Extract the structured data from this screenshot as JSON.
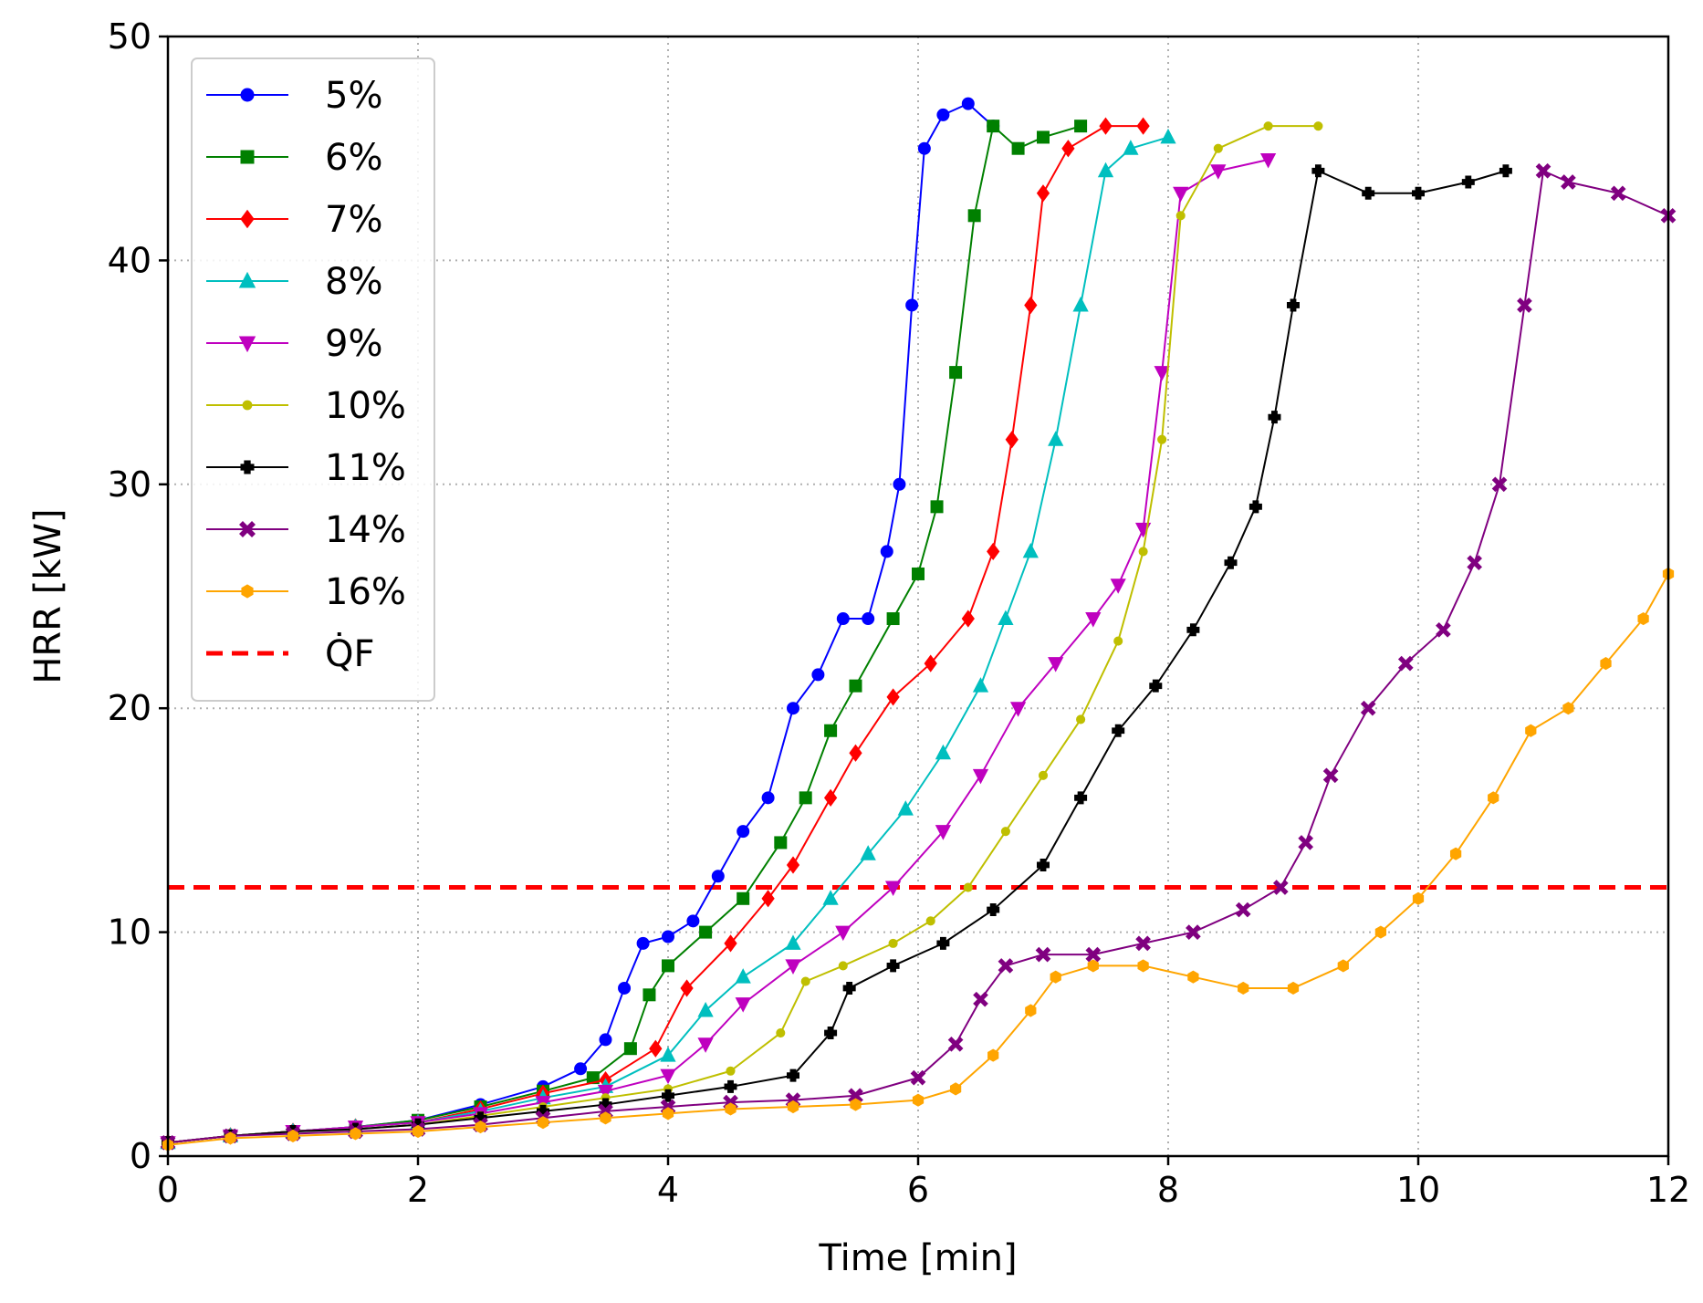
{
  "chart_data": {
    "type": "line",
    "title": "",
    "xlabel": "Time [min]",
    "ylabel": "HRR [kW]",
    "xlim": [
      0,
      12
    ],
    "ylim": [
      0,
      50
    ],
    "xticks": [
      "0",
      "2",
      "4",
      "6",
      "8",
      "10",
      "12"
    ],
    "yticks": [
      "0",
      "10",
      "20",
      "30",
      "40",
      "50"
    ],
    "grid": true,
    "legend_position": "top-left",
    "reference_line": {
      "name": "Q̇F",
      "value": 12,
      "color": "#ff0000",
      "style": "dashed"
    },
    "series": [
      {
        "name": "5%",
        "color": "#0000ff",
        "marker": "circle",
        "points": [
          [
            0,
            0.6
          ],
          [
            0.5,
            0.9
          ],
          [
            1,
            1.1
          ],
          [
            1.5,
            1.3
          ],
          [
            2,
            1.6
          ],
          [
            2.5,
            2.3
          ],
          [
            3,
            3.1
          ],
          [
            3.3,
            3.9
          ],
          [
            3.5,
            5.2
          ],
          [
            3.65,
            7.5
          ],
          [
            3.8,
            9.5
          ],
          [
            4,
            9.8
          ],
          [
            4.2,
            10.5
          ],
          [
            4.4,
            12.5
          ],
          [
            4.6,
            14.5
          ],
          [
            4.8,
            16
          ],
          [
            5,
            20
          ],
          [
            5.2,
            21.5
          ],
          [
            5.4,
            24
          ],
          [
            5.6,
            24
          ],
          [
            5.75,
            27
          ],
          [
            5.85,
            30
          ],
          [
            5.95,
            38
          ],
          [
            6.05,
            45
          ],
          [
            6.2,
            46.5
          ],
          [
            6.4,
            47
          ],
          [
            6.6,
            46
          ]
        ]
      },
      {
        "name": "6%",
        "color": "#008000",
        "marker": "square",
        "points": [
          [
            0,
            0.6
          ],
          [
            0.5,
            0.9
          ],
          [
            1,
            1.1
          ],
          [
            1.5,
            1.3
          ],
          [
            2,
            1.6
          ],
          [
            2.5,
            2.2
          ],
          [
            3,
            2.9
          ],
          [
            3.4,
            3.5
          ],
          [
            3.7,
            4.8
          ],
          [
            3.85,
            7.2
          ],
          [
            4,
            8.5
          ],
          [
            4.3,
            10
          ],
          [
            4.6,
            11.5
          ],
          [
            4.9,
            14
          ],
          [
            5.1,
            16
          ],
          [
            5.3,
            19
          ],
          [
            5.5,
            21
          ],
          [
            5.8,
            24
          ],
          [
            6,
            26
          ],
          [
            6.15,
            29
          ],
          [
            6.3,
            35
          ],
          [
            6.45,
            42
          ],
          [
            6.6,
            46
          ],
          [
            6.8,
            45
          ],
          [
            7,
            45.5
          ],
          [
            7.3,
            46
          ]
        ]
      },
      {
        "name": "7%",
        "color": "#ff0000",
        "marker": "diamond",
        "points": [
          [
            0,
            0.6
          ],
          [
            0.5,
            0.9
          ],
          [
            1,
            1.1
          ],
          [
            1.5,
            1.3
          ],
          [
            2,
            1.5
          ],
          [
            2.5,
            2.1
          ],
          [
            3,
            2.8
          ],
          [
            3.5,
            3.4
          ],
          [
            3.9,
            4.8
          ],
          [
            4.15,
            7.5
          ],
          [
            4.5,
            9.5
          ],
          [
            4.8,
            11.5
          ],
          [
            5,
            13
          ],
          [
            5.3,
            16
          ],
          [
            5.5,
            18
          ],
          [
            5.8,
            20.5
          ],
          [
            6.1,
            22
          ],
          [
            6.4,
            24
          ],
          [
            6.6,
            27
          ],
          [
            6.75,
            32
          ],
          [
            6.9,
            38
          ],
          [
            7,
            43
          ],
          [
            7.2,
            45
          ],
          [
            7.5,
            46
          ],
          [
            7.8,
            46
          ]
        ]
      },
      {
        "name": "8%",
        "color": "#00bfbf",
        "marker": "triangle-up",
        "points": [
          [
            0,
            0.6
          ],
          [
            0.5,
            0.9
          ],
          [
            1,
            1.1
          ],
          [
            1.5,
            1.3
          ],
          [
            2,
            1.5
          ],
          [
            2.5,
            2
          ],
          [
            3,
            2.6
          ],
          [
            3.5,
            3.1
          ],
          [
            4,
            4.5
          ],
          [
            4.3,
            6.5
          ],
          [
            4.6,
            8
          ],
          [
            5,
            9.5
          ],
          [
            5.3,
            11.5
          ],
          [
            5.6,
            13.5
          ],
          [
            5.9,
            15.5
          ],
          [
            6.2,
            18
          ],
          [
            6.5,
            21
          ],
          [
            6.7,
            24
          ],
          [
            6.9,
            27
          ],
          [
            7.1,
            32
          ],
          [
            7.3,
            38
          ],
          [
            7.5,
            44
          ],
          [
            7.7,
            45
          ],
          [
            8,
            45.5
          ]
        ]
      },
      {
        "name": "9%",
        "color": "#bf00bf",
        "marker": "triangle-down",
        "points": [
          [
            0,
            0.6
          ],
          [
            0.5,
            0.9
          ],
          [
            1,
            1.1
          ],
          [
            1.5,
            1.3
          ],
          [
            2,
            1.5
          ],
          [
            2.5,
            1.9
          ],
          [
            3,
            2.4
          ],
          [
            3.5,
            2.9
          ],
          [
            4,
            3.6
          ],
          [
            4.3,
            5
          ],
          [
            4.6,
            6.8
          ],
          [
            5,
            8.5
          ],
          [
            5.4,
            10
          ],
          [
            5.8,
            12
          ],
          [
            6.2,
            14.5
          ],
          [
            6.5,
            17
          ],
          [
            6.8,
            20
          ],
          [
            7.1,
            22
          ],
          [
            7.4,
            24
          ],
          [
            7.6,
            25.5
          ],
          [
            7.8,
            28
          ],
          [
            7.95,
            35
          ],
          [
            8.1,
            43
          ],
          [
            8.4,
            44
          ],
          [
            8.8,
            44.5
          ]
        ]
      },
      {
        "name": "10%",
        "color": "#bfbf00",
        "marker": "point",
        "points": [
          [
            0,
            0.6
          ],
          [
            0.5,
            0.9
          ],
          [
            1,
            1.1
          ],
          [
            1.5,
            1.2
          ],
          [
            2,
            1.4
          ],
          [
            2.5,
            1.8
          ],
          [
            3,
            2.2
          ],
          [
            3.5,
            2.6
          ],
          [
            4,
            3
          ],
          [
            4.5,
            3.8
          ],
          [
            4.9,
            5.5
          ],
          [
            5.1,
            7.8
          ],
          [
            5.4,
            8.5
          ],
          [
            5.8,
            9.5
          ],
          [
            6.1,
            10.5
          ],
          [
            6.4,
            12
          ],
          [
            6.7,
            14.5
          ],
          [
            7,
            17
          ],
          [
            7.3,
            19.5
          ],
          [
            7.6,
            23
          ],
          [
            7.8,
            27
          ],
          [
            7.95,
            32
          ],
          [
            8.1,
            42
          ],
          [
            8.4,
            45
          ],
          [
            8.8,
            46
          ],
          [
            9.2,
            46
          ]
        ]
      },
      {
        "name": "11%",
        "color": "#000000",
        "marker": "plus",
        "points": [
          [
            0,
            0.6
          ],
          [
            0.5,
            0.9
          ],
          [
            1,
            1.1
          ],
          [
            1.5,
            1.2
          ],
          [
            2,
            1.4
          ],
          [
            2.5,
            1.7
          ],
          [
            3,
            2
          ],
          [
            3.5,
            2.3
          ],
          [
            4,
            2.7
          ],
          [
            4.5,
            3.1
          ],
          [
            5,
            3.6
          ],
          [
            5.3,
            5.5
          ],
          [
            5.45,
            7.5
          ],
          [
            5.8,
            8.5
          ],
          [
            6.2,
            9.5
          ],
          [
            6.6,
            11
          ],
          [
            7,
            13
          ],
          [
            7.3,
            16
          ],
          [
            7.6,
            19
          ],
          [
            7.9,
            21
          ],
          [
            8.2,
            23.5
          ],
          [
            8.5,
            26.5
          ],
          [
            8.7,
            29
          ],
          [
            8.85,
            33
          ],
          [
            9,
            38
          ],
          [
            9.2,
            44
          ],
          [
            9.6,
            43
          ],
          [
            10,
            43
          ],
          [
            10.4,
            43.5
          ],
          [
            10.7,
            44
          ]
        ]
      },
      {
        "name": "14%",
        "color": "#800080",
        "marker": "cross",
        "points": [
          [
            0,
            0.6
          ],
          [
            0.5,
            0.9
          ],
          [
            1,
            1
          ],
          [
            1.5,
            1.1
          ],
          [
            2,
            1.2
          ],
          [
            2.5,
            1.4
          ],
          [
            3,
            1.7
          ],
          [
            3.5,
            2
          ],
          [
            4,
            2.2
          ],
          [
            4.5,
            2.4
          ],
          [
            5,
            2.5
          ],
          [
            5.5,
            2.7
          ],
          [
            6,
            3.5
          ],
          [
            6.3,
            5
          ],
          [
            6.5,
            7
          ],
          [
            6.7,
            8.5
          ],
          [
            7,
            9
          ],
          [
            7.4,
            9
          ],
          [
            7.8,
            9.5
          ],
          [
            8.2,
            10
          ],
          [
            8.6,
            11
          ],
          [
            8.9,
            12
          ],
          [
            9.1,
            14
          ],
          [
            9.3,
            17
          ],
          [
            9.6,
            20
          ],
          [
            9.9,
            22
          ],
          [
            10.2,
            23.5
          ],
          [
            10.45,
            26.5
          ],
          [
            10.65,
            30
          ],
          [
            10.85,
            38
          ],
          [
            11,
            44
          ],
          [
            11.2,
            43.5
          ],
          [
            11.6,
            43
          ],
          [
            12,
            42
          ]
        ]
      },
      {
        "name": "16%",
        "color": "#ffa500",
        "marker": "hexagon",
        "points": [
          [
            0,
            0.5
          ],
          [
            0.5,
            0.8
          ],
          [
            1,
            0.9
          ],
          [
            1.5,
            1
          ],
          [
            2,
            1.1
          ],
          [
            2.5,
            1.3
          ],
          [
            3,
            1.5
          ],
          [
            3.5,
            1.7
          ],
          [
            4,
            1.9
          ],
          [
            4.5,
            2.1
          ],
          [
            5,
            2.2
          ],
          [
            5.5,
            2.3
          ],
          [
            6,
            2.5
          ],
          [
            6.3,
            3
          ],
          [
            6.6,
            4.5
          ],
          [
            6.9,
            6.5
          ],
          [
            7.1,
            8
          ],
          [
            7.4,
            8.5
          ],
          [
            7.8,
            8.5
          ],
          [
            8.2,
            8
          ],
          [
            8.6,
            7.5
          ],
          [
            9,
            7.5
          ],
          [
            9.4,
            8.5
          ],
          [
            9.7,
            10
          ],
          [
            10,
            11.5
          ],
          [
            10.3,
            13.5
          ],
          [
            10.6,
            16
          ],
          [
            10.9,
            19
          ],
          [
            11.2,
            20
          ],
          [
            11.5,
            22
          ],
          [
            11.8,
            24
          ],
          [
            12,
            26
          ]
        ]
      }
    ]
  }
}
